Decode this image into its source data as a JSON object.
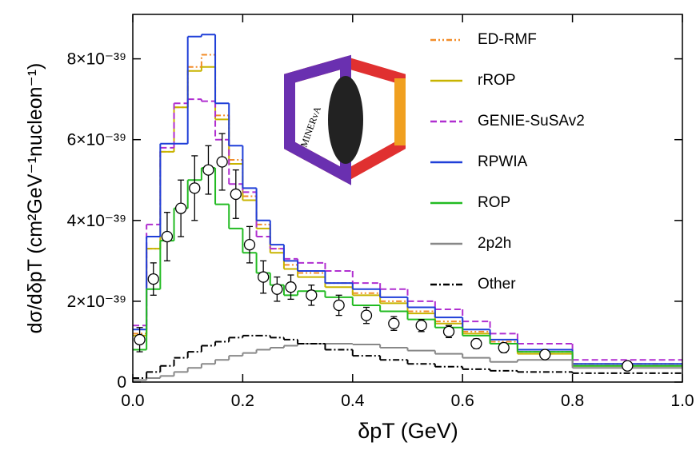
{
  "chart_data": {
    "type": "histogram",
    "xlabel": "δpT (GeV)",
    "ylabel": "dσ/dδpT (cm²GeV⁻¹nucleon⁻¹)",
    "logo_text": "MINERvA",
    "bins": [
      0,
      0.025,
      0.05,
      0.075,
      0.1,
      0.125,
      0.15,
      0.175,
      0.2,
      0.225,
      0.25,
      0.275,
      0.3,
      0.35,
      0.4,
      0.45,
      0.5,
      0.55,
      0.6,
      0.65,
      0.7,
      0.8,
      1.0
    ],
    "xlim": [
      0,
      1.0
    ],
    "xticks": [
      {
        "value": 0,
        "label": "0.0"
      },
      0.2,
      0.4,
      0.6,
      0.8,
      {
        "value": 1.0,
        "label": "1.0"
      }
    ],
    "ylim": [
      0,
      9.1e-39
    ],
    "yticks": [
      0,
      {
        "value": 2e-39,
        "label": "2×10⁻³⁹"
      },
      {
        "value": 4e-39,
        "label": "4×10⁻³⁹"
      },
      {
        "value": 6e-39,
        "label": "6×10⁻³⁹"
      },
      {
        "value": 8e-39,
        "label": "8×10⁻³⁹"
      }
    ],
    "series": [
      {
        "name": "ED-RMF",
        "color": "#f28c28",
        "style": "dashdotdot",
        "values": [
          1.2e-39,
          3.3e-39,
          5.7e-39,
          6.8e-39,
          7.8e-39,
          8.1e-39,
          6.6e-39,
          5.5e-39,
          4.6e-39,
          3.9e-39,
          3.3e-39,
          2.9e-39,
          2.7e-39,
          2.45e-39,
          2.2e-39,
          2e-39,
          1.75e-39,
          1.5e-39,
          1.25e-39,
          1e-39,
          7.5e-40,
          4.5e-40
        ]
      },
      {
        "name": "rROP",
        "color": "#c8b400",
        "style": "solid",
        "values": [
          1.15e-39,
          3.3e-39,
          5.7e-39,
          6.8e-39,
          7.7e-39,
          7.8e-39,
          6.5e-39,
          5.4e-39,
          4.5e-39,
          3.8e-39,
          3.2e-39,
          2.8e-39,
          2.6e-39,
          2.35e-39,
          2.15e-39,
          1.95e-39,
          1.7e-39,
          1.45e-39,
          1.2e-39,
          9.5e-40,
          7e-40,
          4e-40
        ]
      },
      {
        "name": "GENIE-SuSAv2",
        "color": "#b02fd0",
        "style": "dashed",
        "values": [
          1.4e-39,
          3.9e-39,
          5.8e-39,
          6.9e-39,
          7e-39,
          6.95e-39,
          6e-39,
          4.9e-39,
          4.7e-39,
          3.6e-39,
          3.3e-39,
          3.05e-39,
          2.95e-39,
          2.75e-39,
          2.45e-39,
          2.3e-39,
          2e-39,
          1.8e-39,
          1.5e-39,
          1.2e-39,
          9.5e-40,
          5.5e-40
        ]
      },
      {
        "name": "RPWIA",
        "color": "#1f3fd8",
        "style": "solid",
        "values": [
          1.3e-39,
          3.6e-39,
          5.9e-39,
          5.9e-39,
          8.55e-39,
          8.6e-39,
          6.9e-39,
          5.85e-39,
          4.8e-39,
          4e-39,
          3.4e-39,
          3e-39,
          2.75e-39,
          2.45e-39,
          2.3e-39,
          2.1e-39,
          1.85e-39,
          1.6e-39,
          1.3e-39,
          1.05e-39,
          8e-40,
          4.5e-40
        ]
      },
      {
        "name": "ROP",
        "color": "#22bb22",
        "style": "solid",
        "values": [
          8e-40,
          2.3e-39,
          3.5e-39,
          4.3e-39,
          5e-39,
          5.3e-39,
          4.4e-39,
          3.8e-39,
          3.2e-39,
          2.7e-39,
          2.4e-39,
          2.15e-39,
          2.25e-39,
          2.1e-39,
          1.9e-39,
          1.75e-39,
          1.55e-39,
          1.35e-39,
          1.15e-39,
          9.5e-40,
          7.5e-40,
          4e-40
        ]
      },
      {
        "name": "2p2h",
        "color": "#888888",
        "style": "solid",
        "values": [
          5e-41,
          1e-40,
          1.5e-40,
          2.5e-40,
          3.5e-40,
          4.5e-40,
          5.5e-40,
          6.5e-40,
          7.2e-40,
          8e-40,
          8.5e-40,
          9e-40,
          9.5e-40,
          9.5e-40,
          9.3e-40,
          8.5e-40,
          7.8e-40,
          7e-40,
          6e-40,
          5e-40,
          5.5e-40,
          3.5e-40
        ]
      },
      {
        "name": "Other",
        "color": "#000000",
        "style": "dashdot",
        "values": [
          1e-40,
          2.5e-40,
          4e-40,
          6e-40,
          7.5e-40,
          9e-40,
          1e-39,
          1.1e-39,
          1.15e-39,
          1.15e-39,
          1.1e-39,
          1.05e-39,
          9.5e-40,
          8e-40,
          6.5e-40,
          5.5e-40,
          4.5e-40,
          3.8e-40,
          3.2e-40,
          2.8e-40,
          2.5e-40,
          2.2e-40
        ]
      }
    ],
    "data_points": {
      "color": "#000000",
      "values": [
        1.05e-39,
        2.55e-39,
        3.6e-39,
        4.3e-39,
        4.8e-39,
        5.25e-39,
        5.45e-39,
        4.65e-39,
        3.4e-39,
        2.6e-39,
        2.3e-39,
        2.35e-39,
        2.15e-39,
        1.9e-39,
        1.65e-39,
        1.45e-39,
        1.4e-39,
        1.25e-39,
        9.5e-40,
        8.5e-40,
        6.8e-40,
        4e-40
      ],
      "errors": [
        3e-40,
        4e-40,
        6e-40,
        7e-40,
        8e-40,
        6e-40,
        7e-40,
        6e-40,
        4.5e-40,
        4e-40,
        3e-40,
        3e-40,
        2.5e-40,
        2.5e-40,
        2e-40,
        1.7e-40,
        1.5e-40,
        1.5e-40,
        1.2e-40,
        1.2e-40,
        8e-41,
        5e-41
      ]
    }
  }
}
